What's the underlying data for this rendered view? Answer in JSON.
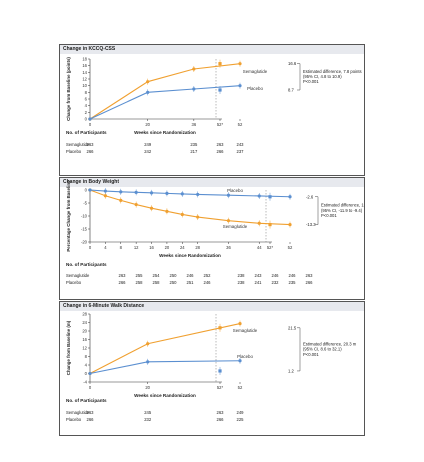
{
  "colors": {
    "semaglutide": "#f0a030",
    "placebo": "#5b8fd0",
    "axis": "#333333",
    "header_bg": "#e7e9ee"
  },
  "chart_data": [
    {
      "type": "line",
      "title": "Change in KCCQ-CSS",
      "ylabel": "Change from Baseline (points)",
      "xlabel": "Weeks since Randomization",
      "ylim": [
        0,
        18
      ],
      "yticks": [
        "0",
        "2",
        "4",
        "6",
        "8",
        "10",
        "12",
        "14",
        "16",
        "18"
      ],
      "xticks": [
        "0",
        "20",
        "36",
        "52",
        "52*"
      ],
      "x": [
        0,
        20,
        36,
        52
      ],
      "series": [
        {
          "name": "Semaglutide",
          "values": [
            0,
            11.2,
            15.0,
            16.6
          ],
          "final_label": "16.6"
        },
        {
          "name": "Placebo",
          "values": [
            0,
            8.0,
            9.0,
            10.0
          ],
          "final_label": "8.7"
        }
      ],
      "annotation": [
        "Estimated difference, 7.8 points",
        "(95% CI, 4.8 to 10.9)",
        "P<0.001"
      ],
      "participants": {
        "title": "No. of Participants",
        "columns": [
          0,
          20,
          36,
          52,
          "52*"
        ],
        "rows": [
          {
            "label": "Semaglutide",
            "values": [
              "263",
              "249",
              "235",
              "243",
              "263"
            ]
          },
          {
            "label": "Placebo",
            "values": [
              "266",
              "242",
              "217",
              "237",
              "266"
            ]
          }
        ]
      }
    },
    {
      "type": "line",
      "title": "Change in Body Weight",
      "ylabel": "Percentage Change from Baseline",
      "xlabel": "Weeks since Randomization",
      "ylim": [
        -20,
        0
      ],
      "yticks": [
        "0",
        "-5",
        "-10",
        "-15",
        "-20"
      ],
      "xticks": [
        "0",
        "4",
        "8",
        "12",
        "16",
        "20",
        "24",
        "28",
        "36",
        "44",
        "52",
        "52*"
      ],
      "x": [
        0,
        4,
        8,
        12,
        16,
        20,
        24,
        28,
        36,
        44,
        52
      ],
      "series": [
        {
          "name": "Semaglutide",
          "values": [
            0,
            -2.2,
            -4.0,
            -5.6,
            -7.0,
            -8.2,
            -9.4,
            -10.4,
            -11.8,
            -12.8,
            -13.3
          ],
          "final_label": "-13.3"
        },
        {
          "name": "Placebo",
          "values": [
            0,
            -0.4,
            -0.7,
            -0.9,
            -1.1,
            -1.3,
            -1.5,
            -1.7,
            -2.0,
            -2.3,
            -2.6
          ],
          "final_label": "-2.6"
        }
      ],
      "annotation": [
        "Estimated difference, 10.7 percentage points",
        "(95% CI, -11.9 to -9.4)",
        "P<0.001"
      ],
      "participants": {
        "title": "No. of Participants",
        "columns": [
          0,
          4,
          8,
          12,
          16,
          20,
          24,
          28,
          36,
          44,
          52,
          "52*"
        ],
        "rows": [
          {
            "label": "Semaglutide",
            "values": [
              "263",
              "255",
              "254",
              "250",
              "246",
              "252",
              "",
              "238",
              "243",
              "246",
              "246",
              "263"
            ]
          },
          {
            "label": "Placebo",
            "values": [
              "266",
              "258",
              "258",
              "250",
              "251",
              "246",
              "",
              "238",
              "241",
              "232",
              "235",
              "266"
            ]
          }
        ]
      }
    },
    {
      "type": "line",
      "title": "Change in 6-Minute Walk Distance",
      "ylabel": "Change from Baseline (m)",
      "xlabel": "Weeks since Randomization",
      "ylim": [
        -4,
        28
      ],
      "yticks": [
        "-4",
        "0",
        "4",
        "8",
        "12",
        "16",
        "20",
        "24",
        "28"
      ],
      "xticks": [
        "0",
        "20",
        "52",
        "52*"
      ],
      "x": [
        0,
        20,
        52
      ],
      "series": [
        {
          "name": "Semaglutide",
          "values": [
            0,
            14.0,
            23.5
          ],
          "final_label": "21.5"
        },
        {
          "name": "Placebo",
          "values": [
            0,
            5.5,
            6.0
          ],
          "final_label": "1.2"
        }
      ],
      "annotation": [
        "Estimated difference, 20.3 m",
        "(95% CI, 8.6 to 32.1)",
        "P<0.001"
      ],
      "participants": {
        "title": "No. of Participants",
        "columns": [
          0,
          20,
          52,
          "52*"
        ],
        "rows": [
          {
            "label": "Semaglutide",
            "values": [
              "263",
              "245",
              "249",
              "263"
            ]
          },
          {
            "label": "Placebo",
            "values": [
              "266",
              "232",
              "225",
              "266"
            ]
          }
        ]
      }
    }
  ]
}
